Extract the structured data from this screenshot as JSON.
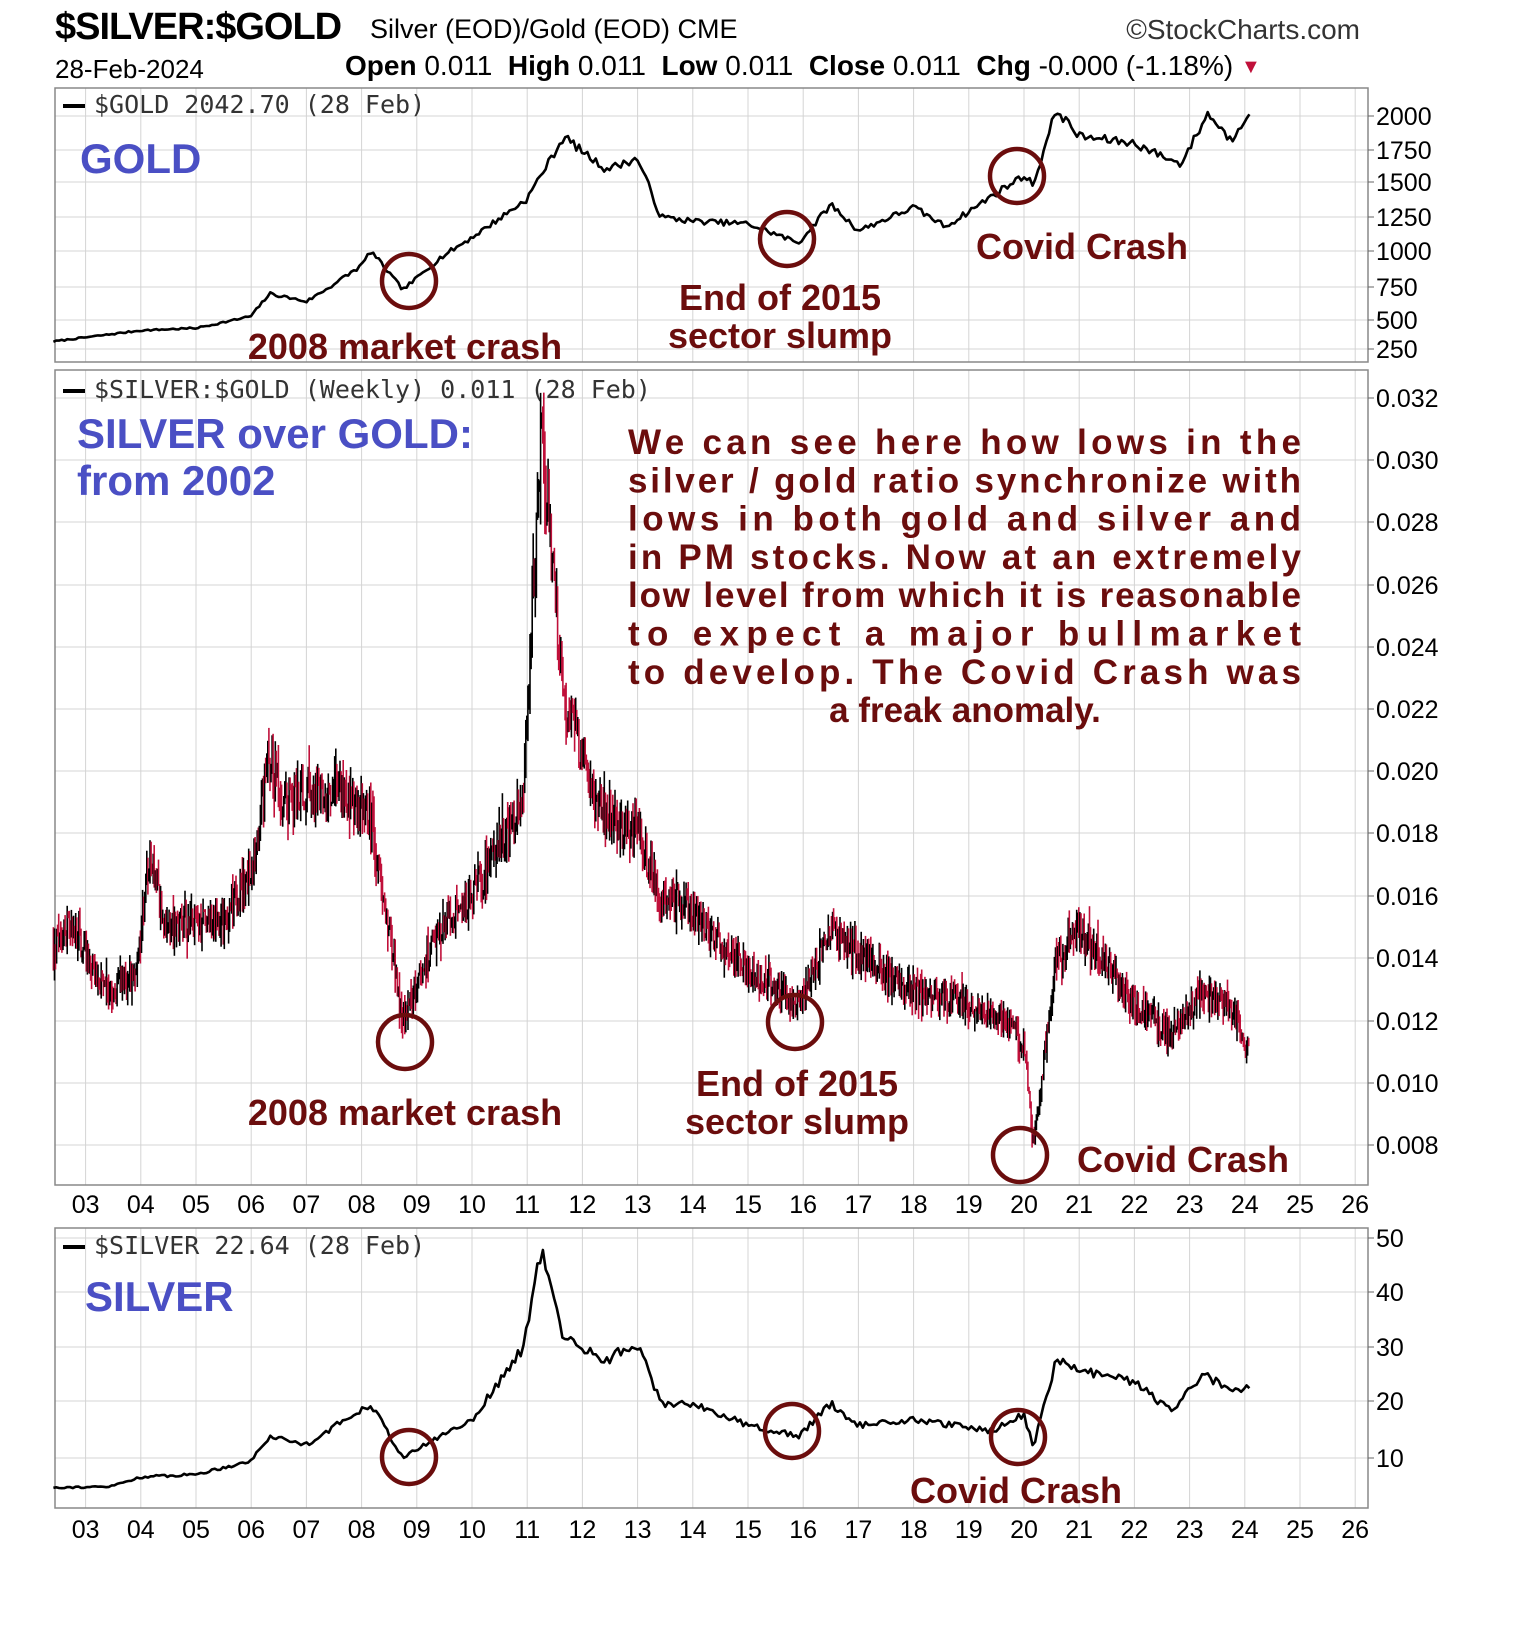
{
  "header": {
    "symbol": "$SILVER:$GOLD",
    "description": "Silver (EOD)/Gold (EOD) CME",
    "site": "©StockCharts.com",
    "date": "28-Feb-2024",
    "open_label": "Open",
    "open_value": "0.011",
    "high_label": "High",
    "high_value": "0.011",
    "low_label": "Low",
    "low_value": "0.011",
    "close_label": "Close",
    "close_value": "0.011",
    "chg_label": "Chg",
    "chg_value": "-0.000 (-1.18%)",
    "chg_arrow": "▼"
  },
  "colors": {
    "label_blue": "#4a4fc4",
    "annotation": "#6b0d0d",
    "line": "#000000",
    "down_bar": "#c0103a",
    "grid": "#d4d4d4"
  },
  "chart_data": [
    {
      "type": "line",
      "legend": "$GOLD 2042.70 (28 Feb)",
      "label": "GOLD",
      "y_ticks": [
        "2000",
        "1750",
        "1500",
        "1250",
        "1000",
        "750",
        "500",
        "250"
      ],
      "x": [
        "2002-06",
        "2003-01",
        "2004-01",
        "2005-01",
        "2006-01",
        "2006-05",
        "2007-01",
        "2008-01",
        "2008-03",
        "2008-10",
        "2009-06",
        "2010-01",
        "2011-01",
        "2011-09",
        "2012-06",
        "2013-01",
        "2013-06",
        "2014-01",
        "2015-01",
        "2015-12",
        "2016-07",
        "2017-01",
        "2018-01",
        "2018-08",
        "2019-06",
        "2020-01",
        "2020-03",
        "2020-08",
        "2021-01",
        "2022-01",
        "2022-11",
        "2023-05",
        "2023-10",
        "2024-02"
      ],
      "values": [
        315,
        350,
        410,
        430,
        530,
        700,
        640,
        900,
        1000,
        730,
        950,
        1100,
        1380,
        1850,
        1600,
        1680,
        1250,
        1220,
        1200,
        1060,
        1340,
        1150,
        1320,
        1180,
        1400,
        1550,
        1480,
        2050,
        1850,
        1800,
        1640,
        2020,
        1820,
        2042
      ],
      "annotations": [
        {
          "text": "2008 market crash",
          "at": "2008-10"
        },
        {
          "text": "End of 2015",
          "text2": "sector slump",
          "at": "2015-12"
        },
        {
          "text": "Covid Crash",
          "at": "2020-03"
        }
      ]
    },
    {
      "type": "bar",
      "legend": "$SILVER:$GOLD (Weekly) 0.011 (28 Feb)",
      "label_line1": "SILVER over GOLD:",
      "label_line2": "from 2002",
      "y_ticks": [
        "0.032",
        "0.030",
        "0.028",
        "0.026",
        "0.024",
        "0.022",
        "0.020",
        "0.018",
        "0.016",
        "0.014",
        "0.012",
        "0.010",
        "0.008"
      ],
      "x_ticks": [
        "03",
        "04",
        "05",
        "06",
        "07",
        "08",
        "09",
        "10",
        "11",
        "12",
        "13",
        "14",
        "15",
        "16",
        "17",
        "18",
        "19",
        "20",
        "21",
        "22",
        "23",
        "24",
        "25",
        "26"
      ],
      "x": [
        "2002-06",
        "2002-10",
        "2003-06",
        "2003-12",
        "2004-03",
        "2004-06",
        "2005-06",
        "2006-01",
        "2006-05",
        "2006-08",
        "2007-06",
        "2008-03",
        "2008-10",
        "2009-06",
        "2010-01",
        "2010-12",
        "2011-04",
        "2011-09",
        "2012-06",
        "2013-01",
        "2013-06",
        "2014-01",
        "2015-01",
        "2015-12",
        "2016-07",
        "2017-01",
        "2018-01",
        "2019-01",
        "2019-08",
        "2020-01",
        "2020-03",
        "2020-08",
        "2021-01",
        "2022-01",
        "2022-09",
        "2023-03",
        "2023-10",
        "2024-02"
      ],
      "values": [
        0.0145,
        0.015,
        0.0128,
        0.0135,
        0.0175,
        0.015,
        0.0152,
        0.0165,
        0.0205,
        0.019,
        0.0195,
        0.0185,
        0.012,
        0.015,
        0.016,
        0.019,
        0.031,
        0.022,
        0.0185,
        0.018,
        0.016,
        0.0155,
        0.0135,
        0.0125,
        0.0148,
        0.014,
        0.013,
        0.0125,
        0.012,
        0.0112,
        0.008,
        0.014,
        0.015,
        0.0125,
        0.0115,
        0.0128,
        0.0124,
        0.011
      ],
      "annotations": [
        {
          "text": "2008 market crash",
          "at": "2008-10"
        },
        {
          "text": "End of 2015",
          "text2": "sector slump",
          "at": "2015-12"
        },
        {
          "text": "Covid Crash",
          "at": "2020-03"
        }
      ],
      "note_lines": [
        "We can see here how lows in the",
        "silver / gold ratio synchronize with",
        "lows in both gold and silver and",
        "in PM stocks. Now at an extremely",
        "low level from which it is reasonable",
        "to expect a major bullmarket",
        "to develop. The Covid Crash was",
        "a freak anomaly."
      ]
    },
    {
      "type": "line",
      "legend": "$SILVER 22.64 (28 Feb)",
      "label": "SILVER",
      "y_ticks": [
        "50",
        "40",
        "30",
        "20",
        "10"
      ],
      "x_ticks": [
        "03",
        "04",
        "05",
        "06",
        "07",
        "08",
        "09",
        "10",
        "11",
        "12",
        "13",
        "14",
        "15",
        "16",
        "17",
        "18",
        "19",
        "20",
        "21",
        "22",
        "23",
        "24",
        "25",
        "26"
      ],
      "x": [
        "2002-06",
        "2003-06",
        "2004-01",
        "2005-01",
        "2006-01",
        "2006-05",
        "2007-01",
        "2008-03",
        "2008-10",
        "2009-06",
        "2010-01",
        "2010-12",
        "2011-04",
        "2011-09",
        "2012-06",
        "2013-01",
        "2013-06",
        "2014-01",
        "2015-01",
        "2015-12",
        "2016-07",
        "2017-01",
        "2018-01",
        "2019-06",
        "2020-01",
        "2020-03",
        "2020-08",
        "2021-01",
        "2022-01",
        "2022-09",
        "2023-04",
        "2023-10",
        "2024-02"
      ],
      "values": [
        4.6,
        4.7,
        6.5,
        7.0,
        9.5,
        14.0,
        12.5,
        20.0,
        10.0,
        14.0,
        17.0,
        30.0,
        48.0,
        32.0,
        28.0,
        31.0,
        20.0,
        20.0,
        16.0,
        14.0,
        20.0,
        16.0,
        17.0,
        15.0,
        18.0,
        12.0,
        28.0,
        26.0,
        24.0,
        18.5,
        25.5,
        22.0,
        22.64
      ],
      "annotations": [
        {
          "at": "2008-10"
        },
        {
          "at": "2015-12"
        },
        {
          "text": "Covid Crash",
          "at": "2020-03"
        }
      ]
    }
  ]
}
